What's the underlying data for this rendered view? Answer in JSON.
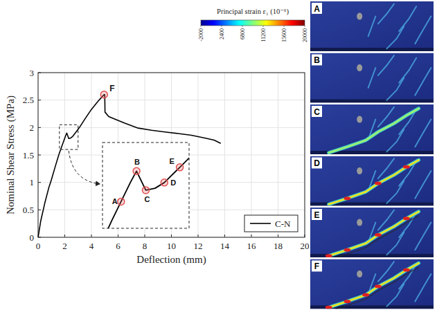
{
  "chart_data": {
    "type": "line",
    "x_label": "Deflection (mm)",
    "y_label": "Nominal Shear Stress (MPa)",
    "x": [
      0,
      0.2,
      0.5,
      0.8,
      1.0,
      1.3,
      1.55,
      1.75,
      1.9,
      2.05,
      2.15,
      2.3,
      2.45,
      2.6,
      2.85,
      3.1,
      3.5,
      4.0,
      4.5,
      4.8,
      4.95,
      5.0,
      5.02,
      5.3,
      5.8,
      6.5,
      7.5,
      8.5,
      9.5,
      10.5,
      11.5,
      12.5,
      13.2,
      13.7
    ],
    "series": [
      {
        "name": "C-N",
        "color": "#000000",
        "line_style": "solid",
        "values": [
          0,
          0.3,
          0.62,
          0.9,
          1.05,
          1.3,
          1.5,
          1.64,
          1.74,
          1.84,
          1.9,
          1.8,
          1.81,
          1.84,
          1.92,
          2.0,
          2.15,
          2.33,
          2.48,
          2.56,
          2.6,
          2.6,
          2.28,
          2.2,
          2.15,
          2.08,
          1.99,
          1.95,
          1.92,
          1.89,
          1.86,
          1.81,
          1.77,
          1.71
        ]
      }
    ],
    "xlim": [
      0,
      20
    ],
    "ylim": [
      0,
      3
    ],
    "xticks": [
      0,
      2,
      4,
      6,
      8,
      10,
      12,
      14,
      16,
      18,
      20
    ],
    "yticks": [
      0,
      0.5,
      1,
      1.5,
      2,
      2.5,
      3
    ],
    "grid": true,
    "legend": "lower right",
    "annotations": [
      {
        "label": "F",
        "x": 4.95,
        "y": 2.6
      }
    ],
    "inset": {
      "xlim": [
        1.6,
        3.0
      ],
      "ylim": [
        1.6,
        2.05
      ],
      "annotations": [
        {
          "label": "A",
          "x": 1.9,
          "y": 1.74
        },
        {
          "label": "B",
          "x": 2.15,
          "y": 1.9
        },
        {
          "label": "C",
          "x": 2.3,
          "y": 1.8
        },
        {
          "label": "D",
          "x": 2.6,
          "y": 1.84
        },
        {
          "label": "E",
          "x": 2.85,
          "y": 1.92
        }
      ]
    },
    "colorbar": {
      "label": "Principal strain ε₁ (10⁻⁶)",
      "lim": [
        -2000,
        20000
      ],
      "ticks": [
        -2000,
        2400,
        6800,
        11200,
        15600,
        20000
      ]
    },
    "panels": [
      "A",
      "B",
      "C",
      "D",
      "E",
      "F"
    ]
  }
}
